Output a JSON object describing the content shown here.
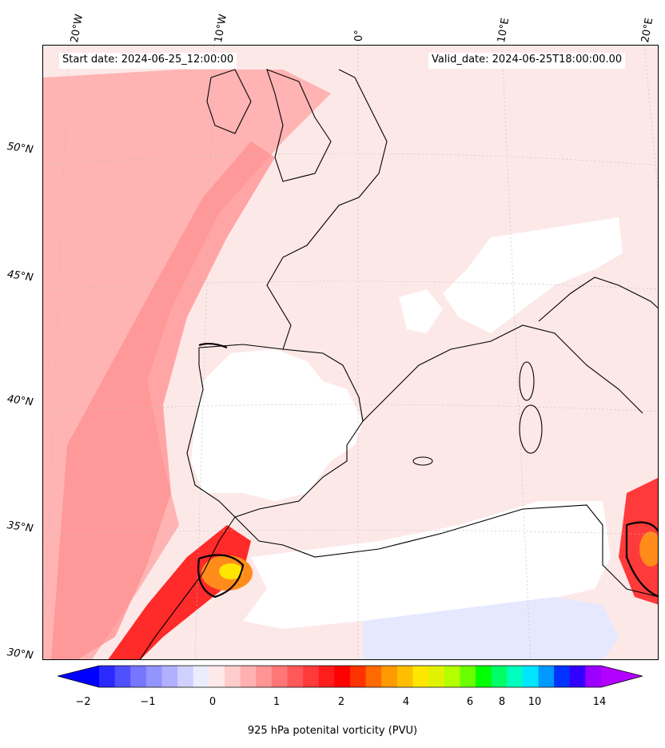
{
  "map": {
    "start_date": "Start date: 2024-06-25_12:00:00",
    "valid_date": "Valid_date: 2024-06-25T18:00:00.00",
    "lon_labels": [
      "20°W",
      "10°W",
      "0°",
      "10°E",
      "20°E"
    ],
    "lat_labels": [
      "50°N",
      "45°N",
      "40°N",
      "35°N",
      "30°N"
    ],
    "colors": {
      "background_field": "#fde8e8",
      "light_red": "#ffb3b3",
      "mid_red": "#ff7a7a",
      "strong_red": "#ff2a2a",
      "orange": "#ff8c1a",
      "yellow": "#ffe600",
      "masked": "#ffffff",
      "light_blue": "#e6e8ff",
      "coastline": "#000000"
    }
  },
  "colorbar": {
    "title": "925 hPa potenital vorticity (PVU)",
    "tick_labels": [
      "−2",
      "−1",
      "0",
      "1",
      "2",
      "4",
      "6",
      "8",
      "10",
      "14"
    ],
    "colors": [
      "#0000ff",
      "#2a2aff",
      "#5050ff",
      "#7676ff",
      "#9494ff",
      "#b0b0ff",
      "#d0d0ff",
      "#ececff",
      "#ffe8e8",
      "#ffcccc",
      "#ffb0b0",
      "#ff9494",
      "#ff7676",
      "#ff5858",
      "#ff3a3a",
      "#ff1c1c",
      "#ff0000",
      "#ff3300",
      "#ff6a00",
      "#ff9a00",
      "#ffbf00",
      "#ffe600",
      "#e1f200",
      "#b4ff00",
      "#6aff00",
      "#00ff00",
      "#00ff66",
      "#00ffbf",
      "#00e6ff",
      "#0099ff",
      "#0033ff",
      "#3300ff",
      "#9900ff",
      "#b300ff"
    ]
  }
}
